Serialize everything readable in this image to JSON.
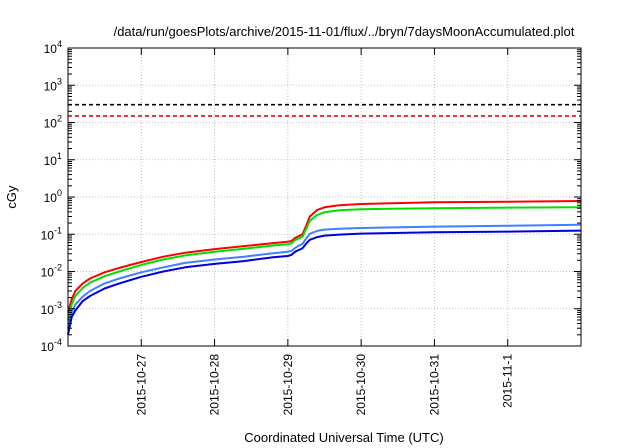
{
  "chart_data": {
    "type": "line",
    "title": "/data/run/goesPlots/archive/2015-11-01/flux/../bryn/7daysMoonAccumulated.plot",
    "xlabel": "Coordinated Universal Time (UTC)",
    "ylabel": "cGy",
    "yscale": "log",
    "xlim": [
      0,
      7
    ],
    "ylim": [
      0.0001,
      10000
    ],
    "grid": true,
    "legend": "none",
    "x_ticks": [
      {
        "x": 1,
        "label": "2015-10-27"
      },
      {
        "x": 2,
        "label": "2015-10-28"
      },
      {
        "x": 3,
        "label": "2015-10-29"
      },
      {
        "x": 4,
        "label": "2015-10-30"
      },
      {
        "x": 5,
        "label": "2015-10-31"
      },
      {
        "x": 6,
        "label": "2015-11-1"
      }
    ],
    "y_ticks": [
      {
        "value": 0.0001,
        "base": "10",
        "exp": "-4"
      },
      {
        "value": 0.001,
        "base": "10",
        "exp": "-3"
      },
      {
        "value": 0.01,
        "base": "10",
        "exp": "-2"
      },
      {
        "value": 0.1,
        "base": "10",
        "exp": "-1"
      },
      {
        "value": 1,
        "base": "10",
        "exp": "0"
      },
      {
        "value": 10,
        "base": "10",
        "exp": "1"
      },
      {
        "value": 100,
        "base": "10",
        "exp": "2"
      },
      {
        "value": 1000,
        "base": "10",
        "exp": "3"
      },
      {
        "value": 10000,
        "base": "10",
        "exp": "4"
      }
    ],
    "thresholds": [
      {
        "value": 300,
        "color": "#000000",
        "style": "dashed"
      },
      {
        "value": 150,
        "color": "#ff0000",
        "style": "dashed"
      }
    ],
    "x": [
      0.0,
      0.05,
      0.1,
      0.2,
      0.3,
      0.5,
      0.7,
      1.0,
      1.3,
      1.6,
      2.0,
      2.4,
      2.8,
      3.0,
      3.05,
      3.1,
      3.15,
      3.2,
      3.25,
      3.3,
      3.4,
      3.5,
      3.7,
      4.0,
      5.0,
      6.0,
      7.0
    ],
    "series": [
      {
        "color": "#ff0000",
        "values": [
          0.0008,
          0.0018,
          0.003,
          0.0048,
          0.0065,
          0.0095,
          0.0125,
          0.018,
          0.025,
          0.032,
          0.04,
          0.048,
          0.058,
          0.063,
          0.066,
          0.08,
          0.09,
          0.1,
          0.17,
          0.3,
          0.45,
          0.53,
          0.6,
          0.65,
          0.72,
          0.75,
          0.78
        ]
      },
      {
        "color": "#00e000",
        "values": [
          0.0005,
          0.0013,
          0.0022,
          0.0036,
          0.005,
          0.0075,
          0.01,
          0.015,
          0.021,
          0.027,
          0.034,
          0.041,
          0.05,
          0.054,
          0.057,
          0.07,
          0.078,
          0.086,
          0.14,
          0.23,
          0.33,
          0.39,
          0.44,
          0.47,
          0.5,
          0.52,
          0.53
        ]
      },
      {
        "color": "#4080ff",
        "values": [
          0.0003,
          0.0008,
          0.0013,
          0.0021,
          0.003,
          0.0048,
          0.0065,
          0.0095,
          0.013,
          0.017,
          0.021,
          0.025,
          0.031,
          0.034,
          0.036,
          0.043,
          0.05,
          0.055,
          0.077,
          0.103,
          0.123,
          0.133,
          0.14,
          0.147,
          0.16,
          0.17,
          0.18
        ]
      },
      {
        "color": "#0000dd",
        "values": [
          0.0002,
          0.0006,
          0.0009,
          0.0016,
          0.0022,
          0.0035,
          0.0048,
          0.0072,
          0.01,
          0.013,
          0.016,
          0.019,
          0.024,
          0.026,
          0.028,
          0.034,
          0.038,
          0.042,
          0.056,
          0.071,
          0.084,
          0.092,
          0.098,
          0.104,
          0.113,
          0.118,
          0.125
        ]
      }
    ]
  }
}
